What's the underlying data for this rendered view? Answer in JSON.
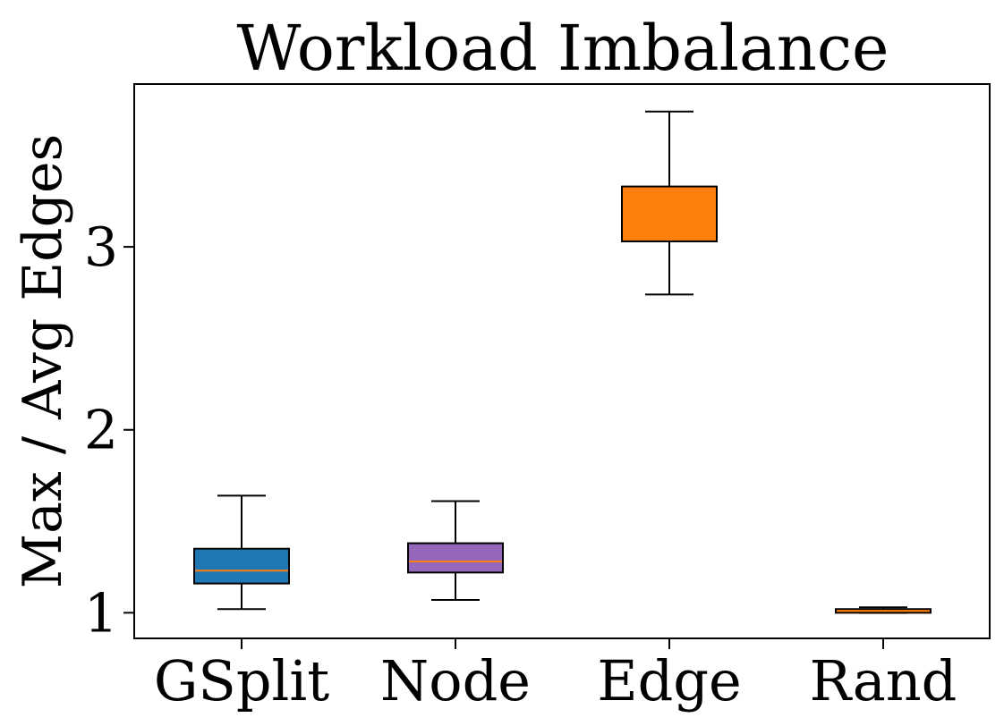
{
  "chart_data": {
    "type": "box",
    "title": "Workload Imbalance",
    "xlabel": "",
    "ylabel": "Max / Avg Edges",
    "ylim": [
      0.86,
      3.89
    ],
    "yticks": [
      1,
      2,
      3
    ],
    "grid": false,
    "categories": [
      "GSplit",
      "Node",
      "Edge",
      "Rand"
    ],
    "boxes": [
      {
        "category": "GSplit",
        "whisker_low": 1.02,
        "q1": 1.16,
        "median": 1.23,
        "q3": 1.35,
        "whisker_high": 1.64,
        "color": "#1f77b4"
      },
      {
        "category": "Node",
        "whisker_low": 1.07,
        "q1": 1.22,
        "median": 1.28,
        "q3": 1.38,
        "whisker_high": 1.61,
        "color": "#9467bd"
      },
      {
        "category": "Edge",
        "whisker_low": 2.74,
        "q1": 3.03,
        "median": 3.16,
        "q3": 3.33,
        "whisker_high": 3.74,
        "color": "#ff7f0e"
      },
      {
        "category": "Rand",
        "whisker_low": 1.0,
        "q1": 1.0,
        "median": 1.01,
        "q3": 1.02,
        "whisker_high": 1.03,
        "color": "#ff7f0e"
      }
    ],
    "median_color": "#ff7f0e"
  }
}
